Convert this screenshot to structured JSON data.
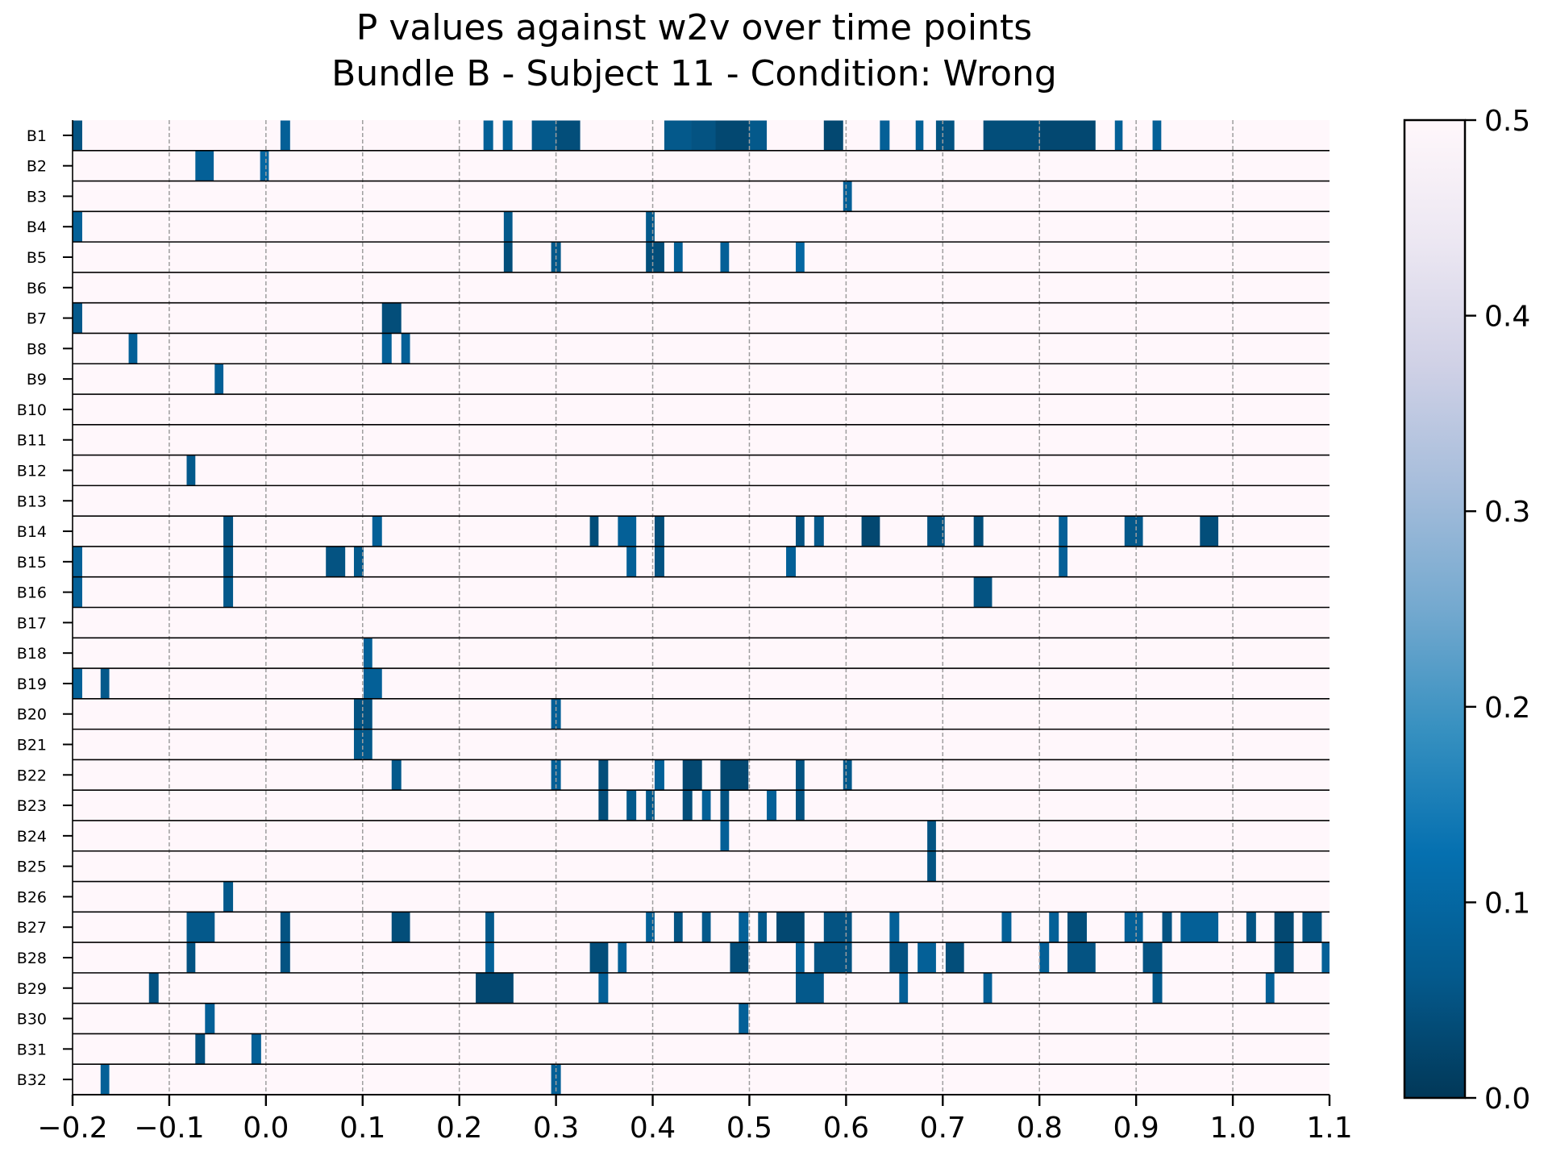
{
  "chart_data": {
    "type": "heatmap",
    "title_line1": "P values against w2v over time points",
    "title_line2": "Bundle B - Subject 11 - Condition: Wrong",
    "xlabel": "",
    "ylabel": "",
    "xlim": [
      -0.2,
      1.1
    ],
    "xticks": [
      "−0.2",
      "−0.1",
      "0.0",
      "0.1",
      "0.2",
      "0.3",
      "0.4",
      "0.5",
      "0.6",
      "0.7",
      "0.8",
      "0.9",
      "1.0",
      "1.1"
    ],
    "xtick_values": [
      -0.2,
      -0.1,
      0.0,
      0.1,
      0.2,
      0.3,
      0.4,
      0.5,
      0.6,
      0.7,
      0.8,
      0.9,
      1.0,
      1.1
    ],
    "rows": [
      "B1",
      "B2",
      "B3",
      "B4",
      "B5",
      "B6",
      "B7",
      "B8",
      "B9",
      "B10",
      "B11",
      "B12",
      "B13",
      "B14",
      "B15",
      "B16",
      "B17",
      "B18",
      "B19",
      "B20",
      "B21",
      "B22",
      "B23",
      "B24",
      "B25",
      "B26",
      "B27",
      "B28",
      "B29",
      "B30",
      "B31",
      "B32"
    ],
    "background_value": 0.5,
    "vertical_grid": true,
    "colorbar": {
      "colormap": "PuBu_r",
      "range": [
        0.0,
        0.5
      ],
      "ticks": [
        "0.0",
        "0.1",
        "0.2",
        "0.3",
        "0.4",
        "0.5"
      ],
      "tick_values": [
        0.0,
        0.1,
        0.2,
        0.3,
        0.4,
        0.5
      ],
      "colors": [
        "#023858",
        "#045a8d",
        "#0570b0",
        "#3690c0",
        "#74a9cf",
        "#a6bddb",
        "#d0d1e6",
        "#ece7f2",
        "#fff7fb"
      ]
    },
    "cells": [
      {
        "row": "B1",
        "t0": -0.2,
        "t1": -0.19,
        "p": 0.05
      },
      {
        "row": "B1",
        "t0": 0.015,
        "t1": 0.025,
        "p": 0.08
      },
      {
        "row": "B1",
        "t0": 0.225,
        "t1": 0.235,
        "p": 0.08
      },
      {
        "row": "B1",
        "t0": 0.245,
        "t1": 0.255,
        "p": 0.08
      },
      {
        "row": "B1",
        "t0": 0.275,
        "t1": 0.3,
        "p": 0.06
      },
      {
        "row": "B1",
        "t0": 0.3,
        "t1": 0.325,
        "p": 0.04
      },
      {
        "row": "B1",
        "t0": 0.412,
        "t1": 0.44,
        "p": 0.06
      },
      {
        "row": "B1",
        "t0": 0.44,
        "t1": 0.465,
        "p": 0.05
      },
      {
        "row": "B1",
        "t0": 0.465,
        "t1": 0.5,
        "p": 0.03
      },
      {
        "row": "B1",
        "t0": 0.5,
        "t1": 0.518,
        "p": 0.06
      },
      {
        "row": "B1",
        "t0": 0.577,
        "t1": 0.597,
        "p": 0.03
      },
      {
        "row": "B1",
        "t0": 0.635,
        "t1": 0.645,
        "p": 0.08
      },
      {
        "row": "B1",
        "t0": 0.672,
        "t1": 0.68,
        "p": 0.08
      },
      {
        "row": "B1",
        "t0": 0.693,
        "t1": 0.712,
        "p": 0.05
      },
      {
        "row": "B1",
        "t0": 0.742,
        "t1": 0.8,
        "p": 0.04
      },
      {
        "row": "B1",
        "t0": 0.8,
        "t1": 0.858,
        "p": 0.03
      },
      {
        "row": "B1",
        "t0": 0.878,
        "t1": 0.886,
        "p": 0.08
      },
      {
        "row": "B1",
        "t0": 0.917,
        "t1": 0.926,
        "p": 0.08
      },
      {
        "row": "B2",
        "t0": -0.073,
        "t1": -0.054,
        "p": 0.08
      },
      {
        "row": "B2",
        "t0": -0.006,
        "t1": 0.003,
        "p": 0.1
      },
      {
        "row": "B3",
        "t0": 0.597,
        "t1": 0.606,
        "p": 0.08
      },
      {
        "row": "B4",
        "t0": -0.2,
        "t1": -0.19,
        "p": 0.08
      },
      {
        "row": "B4",
        "t0": 0.246,
        "t1": 0.255,
        "p": 0.06
      },
      {
        "row": "B4",
        "t0": 0.393,
        "t1": 0.402,
        "p": 0.06
      },
      {
        "row": "B5",
        "t0": 0.246,
        "t1": 0.255,
        "p": 0.04
      },
      {
        "row": "B5",
        "t0": 0.295,
        "t1": 0.305,
        "p": 0.06
      },
      {
        "row": "B5",
        "t0": 0.393,
        "t1": 0.412,
        "p": 0.04
      },
      {
        "row": "B5",
        "t0": 0.422,
        "t1": 0.431,
        "p": 0.08
      },
      {
        "row": "B5",
        "t0": 0.47,
        "t1": 0.479,
        "p": 0.08
      },
      {
        "row": "B5",
        "t0": 0.548,
        "t1": 0.557,
        "p": 0.1
      },
      {
        "row": "B7",
        "t0": -0.2,
        "t1": -0.19,
        "p": 0.06
      },
      {
        "row": "B7",
        "t0": 0.12,
        "t1": 0.14,
        "p": 0.04
      },
      {
        "row": "B8",
        "t0": -0.142,
        "t1": -0.133,
        "p": 0.08
      },
      {
        "row": "B8",
        "t0": 0.12,
        "t1": 0.13,
        "p": 0.08
      },
      {
        "row": "B8",
        "t0": 0.14,
        "t1": 0.149,
        "p": 0.08
      },
      {
        "row": "B9",
        "t0": -0.053,
        "t1": -0.044,
        "p": 0.08
      },
      {
        "row": "B12",
        "t0": -0.082,
        "t1": -0.073,
        "p": 0.06
      },
      {
        "row": "B14",
        "t0": -0.044,
        "t1": -0.034,
        "p": 0.05
      },
      {
        "row": "B14",
        "t0": 0.11,
        "t1": 0.12,
        "p": 0.08
      },
      {
        "row": "B14",
        "t0": 0.335,
        "t1": 0.344,
        "p": 0.04
      },
      {
        "row": "B14",
        "t0": 0.364,
        "t1": 0.383,
        "p": 0.08
      },
      {
        "row": "B14",
        "t0": 0.402,
        "t1": 0.412,
        "p": 0.04
      },
      {
        "row": "B14",
        "t0": 0.548,
        "t1": 0.557,
        "p": 0.05
      },
      {
        "row": "B14",
        "t0": 0.567,
        "t1": 0.577,
        "p": 0.06
      },
      {
        "row": "B14",
        "t0": 0.616,
        "t1": 0.635,
        "p": 0.03
      },
      {
        "row": "B14",
        "t0": 0.684,
        "t1": 0.702,
        "p": 0.05
      },
      {
        "row": "B14",
        "t0": 0.732,
        "t1": 0.742,
        "p": 0.04
      },
      {
        "row": "B14",
        "t0": 0.82,
        "t1": 0.829,
        "p": 0.08
      },
      {
        "row": "B14",
        "t0": 0.888,
        "t1": 0.907,
        "p": 0.06
      },
      {
        "row": "B14",
        "t0": 0.966,
        "t1": 0.985,
        "p": 0.04
      },
      {
        "row": "B15",
        "t0": -0.2,
        "t1": -0.19,
        "p": 0.08
      },
      {
        "row": "B15",
        "t0": -0.044,
        "t1": -0.034,
        "p": 0.05
      },
      {
        "row": "B15",
        "t0": 0.062,
        "t1": 0.082,
        "p": 0.05
      },
      {
        "row": "B15",
        "t0": 0.091,
        "t1": 0.101,
        "p": 0.06
      },
      {
        "row": "B15",
        "t0": 0.373,
        "t1": 0.383,
        "p": 0.08
      },
      {
        "row": "B15",
        "t0": 0.402,
        "t1": 0.412,
        "p": 0.05
      },
      {
        "row": "B15",
        "t0": 0.538,
        "t1": 0.548,
        "p": 0.08
      },
      {
        "row": "B15",
        "t0": 0.82,
        "t1": 0.829,
        "p": 0.08
      },
      {
        "row": "B16",
        "t0": -0.2,
        "t1": -0.19,
        "p": 0.08
      },
      {
        "row": "B16",
        "t0": -0.044,
        "t1": -0.034,
        "p": 0.06
      },
      {
        "row": "B16",
        "t0": 0.732,
        "t1": 0.751,
        "p": 0.05
      },
      {
        "row": "B18",
        "t0": 0.101,
        "t1": 0.11,
        "p": 0.08
      },
      {
        "row": "B19",
        "t0": -0.2,
        "t1": -0.19,
        "p": 0.08
      },
      {
        "row": "B19",
        "t0": -0.171,
        "t1": -0.162,
        "p": 0.06
      },
      {
        "row": "B19",
        "t0": 0.101,
        "t1": 0.12,
        "p": 0.08
      },
      {
        "row": "B20",
        "t0": 0.091,
        "t1": 0.11,
        "p": 0.05
      },
      {
        "row": "B20",
        "t0": 0.295,
        "t1": 0.305,
        "p": 0.08
      },
      {
        "row": "B21",
        "t0": 0.091,
        "t1": 0.11,
        "p": 0.06
      },
      {
        "row": "B22",
        "t0": 0.13,
        "t1": 0.14,
        "p": 0.06
      },
      {
        "row": "B22",
        "t0": 0.295,
        "t1": 0.305,
        "p": 0.08
      },
      {
        "row": "B22",
        "t0": 0.344,
        "t1": 0.354,
        "p": 0.04
      },
      {
        "row": "B22",
        "t0": 0.402,
        "t1": 0.412,
        "p": 0.08
      },
      {
        "row": "B22",
        "t0": 0.431,
        "t1": 0.451,
        "p": 0.03
      },
      {
        "row": "B22",
        "t0": 0.47,
        "t1": 0.499,
        "p": 0.03
      },
      {
        "row": "B22",
        "t0": 0.548,
        "t1": 0.557,
        "p": 0.05
      },
      {
        "row": "B22",
        "t0": 0.597,
        "t1": 0.606,
        "p": 0.06
      },
      {
        "row": "B23",
        "t0": 0.344,
        "t1": 0.354,
        "p": 0.04
      },
      {
        "row": "B23",
        "t0": 0.373,
        "t1": 0.383,
        "p": 0.06
      },
      {
        "row": "B23",
        "t0": 0.393,
        "t1": 0.402,
        "p": 0.06
      },
      {
        "row": "B23",
        "t0": 0.431,
        "t1": 0.441,
        "p": 0.04
      },
      {
        "row": "B23",
        "t0": 0.451,
        "t1": 0.46,
        "p": 0.08
      },
      {
        "row": "B23",
        "t0": 0.47,
        "t1": 0.479,
        "p": 0.05
      },
      {
        "row": "B23",
        "t0": 0.518,
        "t1": 0.528,
        "p": 0.08
      },
      {
        "row": "B23",
        "t0": 0.548,
        "t1": 0.557,
        "p": 0.05
      },
      {
        "row": "B24",
        "t0": 0.47,
        "t1": 0.479,
        "p": 0.08
      },
      {
        "row": "B24",
        "t0": 0.684,
        "t1": 0.693,
        "p": 0.05
      },
      {
        "row": "B25",
        "t0": 0.684,
        "t1": 0.693,
        "p": 0.05
      },
      {
        "row": "B26",
        "t0": -0.044,
        "t1": -0.034,
        "p": 0.06
      },
      {
        "row": "B27",
        "t0": -0.082,
        "t1": -0.053,
        "p": 0.06
      },
      {
        "row": "B27",
        "t0": 0.015,
        "t1": 0.025,
        "p": 0.05
      },
      {
        "row": "B27",
        "t0": 0.13,
        "t1": 0.149,
        "p": 0.04
      },
      {
        "row": "B27",
        "t0": 0.227,
        "t1": 0.236,
        "p": 0.06
      },
      {
        "row": "B27",
        "t0": 0.393,
        "t1": 0.402,
        "p": 0.08
      },
      {
        "row": "B27",
        "t0": 0.422,
        "t1": 0.431,
        "p": 0.05
      },
      {
        "row": "B27",
        "t0": 0.451,
        "t1": 0.46,
        "p": 0.06
      },
      {
        "row": "B27",
        "t0": 0.489,
        "t1": 0.499,
        "p": 0.08
      },
      {
        "row": "B27",
        "t0": 0.509,
        "t1": 0.518,
        "p": 0.06
      },
      {
        "row": "B27",
        "t0": 0.528,
        "t1": 0.557,
        "p": 0.03
      },
      {
        "row": "B27",
        "t0": 0.577,
        "t1": 0.606,
        "p": 0.05
      },
      {
        "row": "B27",
        "t0": 0.645,
        "t1": 0.655,
        "p": 0.08
      },
      {
        "row": "B27",
        "t0": 0.761,
        "t1": 0.771,
        "p": 0.08
      },
      {
        "row": "B27",
        "t0": 0.81,
        "t1": 0.82,
        "p": 0.08
      },
      {
        "row": "B27",
        "t0": 0.829,
        "t1": 0.849,
        "p": 0.04
      },
      {
        "row": "B27",
        "t0": 0.888,
        "t1": 0.907,
        "p": 0.08
      },
      {
        "row": "B27",
        "t0": 0.927,
        "t1": 0.937,
        "p": 0.05
      },
      {
        "row": "B27",
        "t0": 0.946,
        "t1": 0.985,
        "p": 0.08
      },
      {
        "row": "B27",
        "t0": 1.014,
        "t1": 1.024,
        "p": 0.05
      },
      {
        "row": "B27",
        "t0": 1.043,
        "t1": 1.063,
        "p": 0.03
      },
      {
        "row": "B27",
        "t0": 1.072,
        "t1": 1.092,
        "p": 0.05
      },
      {
        "row": "B28",
        "t0": -0.082,
        "t1": -0.073,
        "p": 0.05
      },
      {
        "row": "B28",
        "t0": 0.015,
        "t1": 0.025,
        "p": 0.05
      },
      {
        "row": "B28",
        "t0": 0.227,
        "t1": 0.236,
        "p": 0.08
      },
      {
        "row": "B28",
        "t0": 0.335,
        "t1": 0.354,
        "p": 0.04
      },
      {
        "row": "B28",
        "t0": 0.364,
        "t1": 0.373,
        "p": 0.08
      },
      {
        "row": "B28",
        "t0": 0.48,
        "t1": 0.499,
        "p": 0.04
      },
      {
        "row": "B28",
        "t0": 0.548,
        "t1": 0.557,
        "p": 0.08
      },
      {
        "row": "B28",
        "t0": 0.567,
        "t1": 0.606,
        "p": 0.05
      },
      {
        "row": "B28",
        "t0": 0.645,
        "t1": 0.664,
        "p": 0.05
      },
      {
        "row": "B28",
        "t0": 0.674,
        "t1": 0.693,
        "p": 0.08
      },
      {
        "row": "B28",
        "t0": 0.703,
        "t1": 0.722,
        "p": 0.04
      },
      {
        "row": "B28",
        "t0": 0.8,
        "t1": 0.81,
        "p": 0.08
      },
      {
        "row": "B28",
        "t0": 0.829,
        "t1": 0.858,
        "p": 0.05
      },
      {
        "row": "B28",
        "t0": 0.907,
        "t1": 0.927,
        "p": 0.05
      },
      {
        "row": "B28",
        "t0": 1.043,
        "t1": 1.063,
        "p": 0.04
      },
      {
        "row": "B28",
        "t0": 1.092,
        "t1": 1.1,
        "p": 0.08
      },
      {
        "row": "B29",
        "t0": -0.121,
        "t1": -0.111,
        "p": 0.05
      },
      {
        "row": "B29",
        "t0": 0.217,
        "t1": 0.256,
        "p": 0.03
      },
      {
        "row": "B29",
        "t0": 0.344,
        "t1": 0.354,
        "p": 0.08
      },
      {
        "row": "B29",
        "t0": 0.548,
        "t1": 0.577,
        "p": 0.06
      },
      {
        "row": "B29",
        "t0": 0.655,
        "t1": 0.664,
        "p": 0.08
      },
      {
        "row": "B29",
        "t0": 0.742,
        "t1": 0.751,
        "p": 0.08
      },
      {
        "row": "B29",
        "t0": 0.917,
        "t1": 0.927,
        "p": 0.06
      },
      {
        "row": "B29",
        "t0": 1.034,
        "t1": 1.043,
        "p": 0.08
      },
      {
        "row": "B30",
        "t0": -0.063,
        "t1": -0.053,
        "p": 0.08
      },
      {
        "row": "B30",
        "t0": 0.489,
        "t1": 0.499,
        "p": 0.08
      },
      {
        "row": "B31",
        "t0": -0.073,
        "t1": -0.063,
        "p": 0.05
      },
      {
        "row": "B31",
        "t0": -0.015,
        "t1": -0.005,
        "p": 0.08
      },
      {
        "row": "B32",
        "t0": -0.171,
        "t1": -0.162,
        "p": 0.08
      },
      {
        "row": "B32",
        "t0": 0.295,
        "t1": 0.305,
        "p": 0.08
      }
    ]
  }
}
